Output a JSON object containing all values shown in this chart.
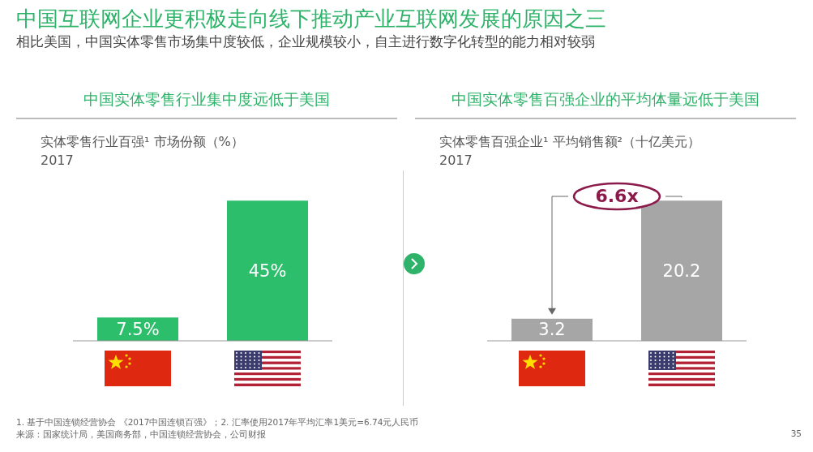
{
  "chart_data": [
    {
      "type": "other",
      "title": "中国互联网企业更积极走向线下推动产业互联网发展的原因之三",
      "subtitle": "相比美国，中国实体零售市场集中度较低，企业规模较小，自主进行数字化转型的能力相对较弱",
      "annotations": [
        "1. 基于中国连锁经营协会 《2017中国连锁百强》；2. 汇率使用2017年平均汇率1美元=6.74元人民币",
        "来源：国家统计局，美国商务部，中国连锁经营协会，公司财报",
        "35"
      ]
    },
    {
      "type": "bar",
      "title": "中国实体零售行业集中度远低于美国",
      "ylabel": "实体零售行业百强¹ 市场份额（%）",
      "annotations": [
        "2017"
      ],
      "categories": [
        null,
        null
      ],
      "values": [
        7.5,
        45
      ],
      "color": "#2dbe6c",
      "value_labels": [
        "7.5%",
        "45%"
      ]
    },
    {
      "type": "bar",
      "title": "中国实体零售百强企业的平均体量远低于美国",
      "ylabel": "实体零售百强企业¹ 平均销售额²（十亿美元）",
      "annotations": [
        "2017",
        "6.6x"
      ],
      "categories": [
        null,
        null
      ],
      "values": [
        3.2,
        20.2
      ],
      "color": "#a6a6a6",
      "data_labels": true
    }
  ]
}
